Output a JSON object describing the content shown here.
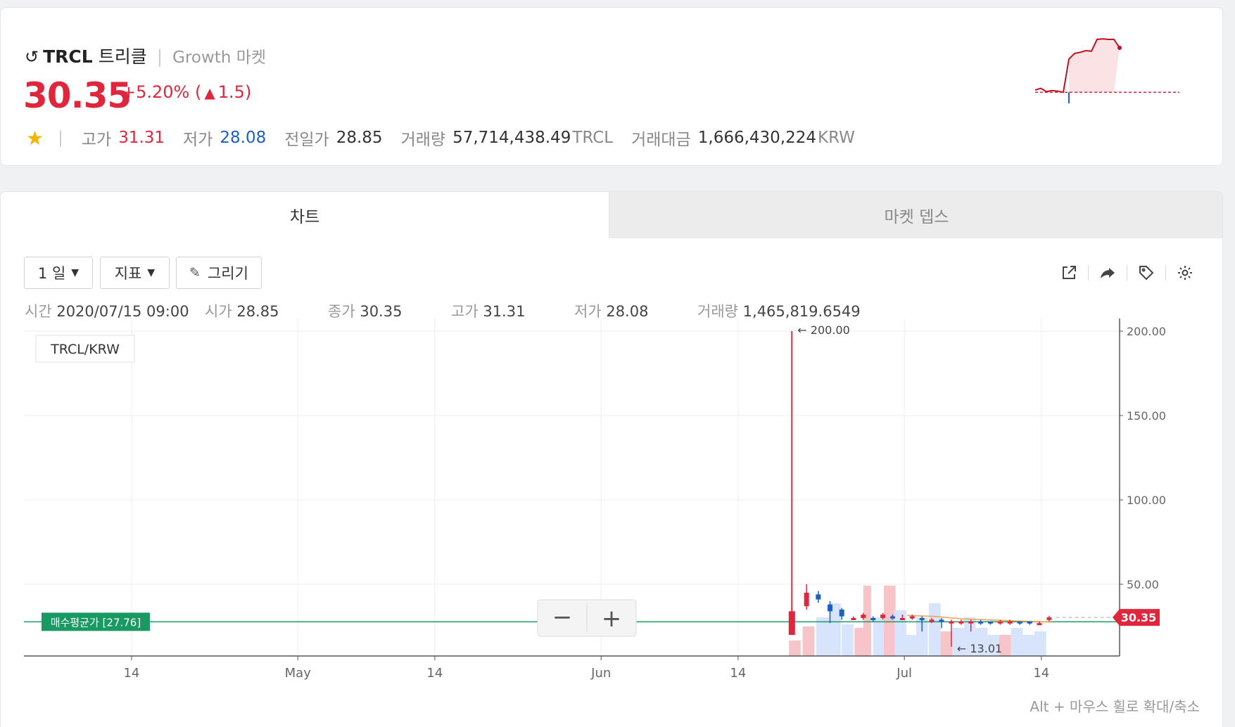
{
  "header": {
    "symbol": "TRCL",
    "name": "트리클",
    "separator": "|",
    "market": "Growth 마켓",
    "price": "30.35",
    "change_pct": "+5.20%",
    "change_abs": "1.5",
    "paren_open": "(",
    "paren_close": ")",
    "stats": {
      "high_label": "고가",
      "high": "31.31",
      "low_label": "저가",
      "low": "28.08",
      "prev_label": "전일가",
      "prev": "28.85",
      "volume_label": "거래량",
      "volume": "57,714,438.49",
      "volume_unit": "TRCL",
      "amount_label": "거래대금",
      "amount": "1,666,430,224",
      "amount_unit": "KRW"
    }
  },
  "tabs": {
    "chart": "차트",
    "depth": "마켓 뎁스"
  },
  "toolbar": {
    "period": "1 일",
    "indicator": "지표",
    "draw": "그리기"
  },
  "ohlc": {
    "time_label": "시간",
    "time": "2020/07/15 09:00",
    "open_label": "시가",
    "open": "28.85",
    "close_label": "종가",
    "close": "30.35",
    "high_label": "고가",
    "high": "31.31",
    "low_label": "저가",
    "low": "28.08",
    "vol_label": "거래량",
    "vol": "1,465,819.6549"
  },
  "chart": {
    "pair": "TRCL/KRW",
    "avg_label": "매수평균가 [27.76]",
    "last_price": "30.35",
    "max_label": "← 200.00",
    "min_label": "← 13.01",
    "zoom_out": "−",
    "zoom_in": "+",
    "hint": "Alt + 마우스 휠로 확대/축소"
  },
  "colors": {
    "up": "#e0263c",
    "down": "#1c5fc4",
    "avg": "#1a9a63",
    "ma": "#f0a04b"
  },
  "chart_data": {
    "type": "candlestick",
    "pair": "TRCL/KRW",
    "ylim": [
      0,
      205
    ],
    "y_ticks": [
      "200.00",
      "150.00",
      "100.00",
      "50.00"
    ],
    "y_tick_values": [
      200,
      150,
      100,
      50
    ],
    "x_ticks": [
      "14",
      "May",
      "14",
      "Jun",
      "14",
      "Jul",
      "14"
    ],
    "x_tick_days": [
      0,
      17,
      31,
      48,
      62,
      79,
      93
    ],
    "x_start_day": -11,
    "x_end_day": 101,
    "avg_price": 27.76,
    "last_price": 30.35,
    "candles": [
      {
        "d": 67.5,
        "o": 20,
        "c": 34,
        "h": 200,
        "l": 20
      },
      {
        "d": 69,
        "o": 37,
        "c": 45,
        "h": 50,
        "l": 35
      },
      {
        "d": 70.2,
        "o": 44,
        "c": 41,
        "h": 46,
        "l": 39
      },
      {
        "d": 71.4,
        "o": 38,
        "c": 34,
        "h": 40,
        "l": 27
      },
      {
        "d": 72.6,
        "o": 35,
        "c": 31,
        "h": 36,
        "l": 29
      },
      {
        "d": 73.8,
        "o": 30,
        "c": 30,
        "h": 31,
        "l": 29
      },
      {
        "d": 74.8,
        "o": 30,
        "c": 32,
        "h": 33,
        "l": 29
      },
      {
        "d": 75.8,
        "o": 30,
        "c": 29,
        "h": 31,
        "l": 28
      },
      {
        "d": 76.8,
        "o": 30,
        "c": 32,
        "h": 33,
        "l": 29
      },
      {
        "d": 77.8,
        "o": 31,
        "c": 30,
        "h": 32,
        "l": 29
      },
      {
        "d": 78.8,
        "o": 30,
        "c": 30,
        "h": 32,
        "l": 29
      },
      {
        "d": 79.8,
        "o": 30,
        "c": 31,
        "h": 32,
        "l": 29
      },
      {
        "d": 80.8,
        "o": 30,
        "c": 29,
        "h": 31,
        "l": 22
      },
      {
        "d": 81.8,
        "o": 29,
        "c": 29,
        "h": 30,
        "l": 27
      },
      {
        "d": 82.8,
        "o": 29,
        "c": 28,
        "h": 30,
        "l": 24
      },
      {
        "d": 83.8,
        "o": 28,
        "c": 28,
        "h": 29,
        "l": 13.01
      },
      {
        "d": 84.8,
        "o": 28,
        "c": 28,
        "h": 29,
        "l": 26
      },
      {
        "d": 85.8,
        "o": 28,
        "c": 28,
        "h": 29,
        "l": 22
      },
      {
        "d": 86.8,
        "o": 28,
        "c": 27,
        "h": 29,
        "l": 26
      },
      {
        "d": 87.8,
        "o": 28,
        "c": 27,
        "h": 28,
        "l": 26
      },
      {
        "d": 88.8,
        "o": 27,
        "c": 28,
        "h": 29,
        "l": 26
      },
      {
        "d": 89.8,
        "o": 27,
        "c": 28,
        "h": 29,
        "l": 26
      },
      {
        "d": 90.8,
        "o": 28,
        "c": 27,
        "h": 28,
        "l": 26
      },
      {
        "d": 91.8,
        "o": 28,
        "c": 27,
        "h": 28,
        "l": 26
      },
      {
        "d": 92.8,
        "o": 27,
        "c": 27,
        "h": 28,
        "l": 26
      },
      {
        "d": 93.8,
        "o": 28.85,
        "c": 30.35,
        "h": 31.31,
        "l": 28.08
      }
    ],
    "volume_bars": [
      {
        "d": 67.2,
        "w": 1.2,
        "v": 0.22,
        "up": true
      },
      {
        "d": 68.6,
        "w": 1.2,
        "v": 0.42,
        "up": true
      },
      {
        "d": 70.0,
        "w": 1.3,
        "v": 0.55,
        "up": false
      },
      {
        "d": 71.3,
        "w": 1.2,
        "v": 0.75,
        "up": false
      },
      {
        "d": 72.6,
        "w": 1.2,
        "v": 0.45,
        "up": false
      },
      {
        "d": 73.9,
        "w": 1.2,
        "v": 0.4,
        "up": true
      },
      {
        "d": 74.8,
        "w": 0.8,
        "v": 1.0,
        "up": true
      },
      {
        "d": 75.8,
        "w": 1.2,
        "v": 0.55,
        "up": false
      },
      {
        "d": 76.9,
        "w": 1.2,
        "v": 1.1,
        "up": true
      },
      {
        "d": 78.0,
        "w": 1.2,
        "v": 0.65,
        "up": false
      },
      {
        "d": 79.1,
        "w": 1.2,
        "v": 0.3,
        "up": false
      },
      {
        "d": 80.2,
        "w": 1.2,
        "v": 0.55,
        "up": false
      },
      {
        "d": 81.5,
        "w": 1.2,
        "v": 0.75,
        "up": false
      },
      {
        "d": 82.7,
        "w": 1.2,
        "v": 0.35,
        "up": true
      },
      {
        "d": 83.9,
        "w": 1.2,
        "v": 0.4,
        "up": false
      },
      {
        "d": 85.1,
        "w": 1.2,
        "v": 0.55,
        "up": false
      },
      {
        "d": 86.3,
        "w": 1.2,
        "v": 0.4,
        "up": false
      },
      {
        "d": 87.5,
        "w": 1.2,
        "v": 0.3,
        "up": false
      },
      {
        "d": 88.7,
        "w": 1.2,
        "v": 0.3,
        "up": true
      },
      {
        "d": 89.9,
        "w": 1.2,
        "v": 0.4,
        "up": false
      },
      {
        "d": 91.1,
        "w": 1.2,
        "v": 0.3,
        "up": false
      },
      {
        "d": 92.3,
        "w": 1.2,
        "v": 0.35,
        "up": false
      }
    ],
    "moving_average": [
      {
        "d": 79.3,
        "y": 31.5
      },
      {
        "d": 82,
        "y": 31
      },
      {
        "d": 85,
        "y": 29.5
      },
      {
        "d": 88,
        "y": 28.8
      },
      {
        "d": 91,
        "y": 28.2
      },
      {
        "d": 94,
        "y": 27.6
      }
    ],
    "sparkline": {
      "points": [
        0.95,
        0.92,
        0.98,
        0.96,
        0.97,
        0.99,
        0.4,
        0.3,
        0.28,
        0.25,
        0.26,
        0.05,
        0.04,
        0.05,
        0.05,
        0.2
      ],
      "baseline": 0.99
    }
  }
}
